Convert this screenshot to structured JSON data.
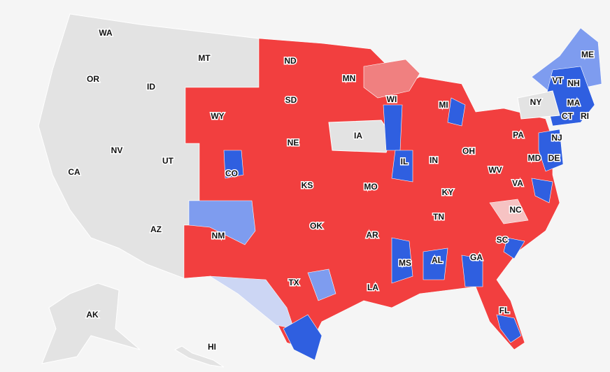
{
  "states": [
    {
      "label": "WA"
    },
    {
      "label": "MT"
    },
    {
      "label": "OR"
    },
    {
      "label": "ID"
    },
    {
      "label": "ND"
    },
    {
      "label": "MN"
    },
    {
      "label": "WY"
    },
    {
      "label": "SD"
    },
    {
      "label": "WI"
    },
    {
      "label": "MI"
    },
    {
      "label": "VT"
    },
    {
      "label": "NH"
    },
    {
      "label": "ME"
    },
    {
      "label": "NY"
    },
    {
      "label": "MA"
    },
    {
      "label": "CT"
    },
    {
      "label": "RI"
    },
    {
      "label": "IA"
    },
    {
      "label": "NE"
    },
    {
      "label": "PA"
    },
    {
      "label": "NJ"
    },
    {
      "label": "OH"
    },
    {
      "label": "IN"
    },
    {
      "label": "IL"
    },
    {
      "label": "NV"
    },
    {
      "label": "UT"
    },
    {
      "label": "CO"
    },
    {
      "label": "MD"
    },
    {
      "label": "DE"
    },
    {
      "label": "CA"
    },
    {
      "label": "KS"
    },
    {
      "label": "MO"
    },
    {
      "label": "WV"
    },
    {
      "label": "VA"
    },
    {
      "label": "KY"
    },
    {
      "label": "NC"
    },
    {
      "label": "TN"
    },
    {
      "label": "OK"
    },
    {
      "label": "AR"
    },
    {
      "label": "NM"
    },
    {
      "label": "AZ"
    },
    {
      "label": "SC"
    },
    {
      "label": "MS"
    },
    {
      "label": "AL"
    },
    {
      "label": "GA"
    },
    {
      "label": "TX"
    },
    {
      "label": "LA"
    },
    {
      "label": "FL"
    },
    {
      "label": "AK"
    },
    {
      "label": "HI"
    }
  ]
}
